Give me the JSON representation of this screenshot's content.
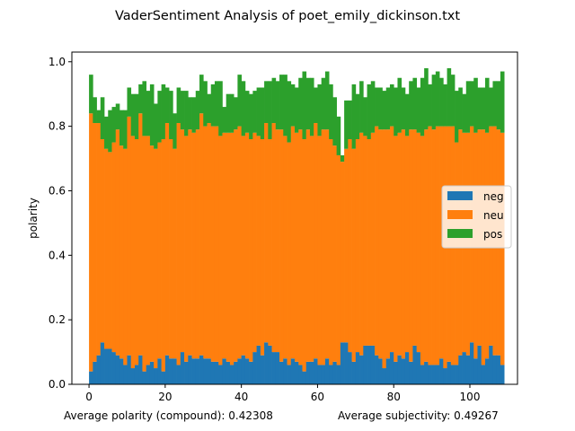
{
  "chart_data": {
    "type": "bar",
    "stacked": true,
    "title": "VaderSentiment Analysis of poet_emily_dickinson.txt",
    "xlabel": "",
    "ylabel": "polarity",
    "xlim": [
      -4.5,
      112.5
    ],
    "ylim": [
      0,
      1.03
    ],
    "xticks": [
      0,
      20,
      40,
      60,
      80,
      100
    ],
    "yticks": [
      0.0,
      0.2,
      0.4,
      0.6,
      0.8,
      1.0
    ],
    "grid": false,
    "legend_position": "right",
    "footer_left": "Average polarity (compound): 0.42308",
    "footer_right": "Average subjectivity: 0.49267",
    "series": [
      {
        "name": "neg",
        "color": "#1f77b4",
        "values": [
          0.04,
          0.07,
          0.09,
          0.13,
          0.11,
          0.11,
          0.1,
          0.09,
          0.08,
          0.06,
          0.09,
          0.05,
          0.06,
          0.09,
          0.04,
          0.06,
          0.07,
          0.05,
          0.08,
          0.04,
          0.09,
          0.08,
          0.08,
          0.06,
          0.1,
          0.07,
          0.09,
          0.08,
          0.08,
          0.09,
          0.08,
          0.08,
          0.07,
          0.07,
          0.06,
          0.08,
          0.07,
          0.06,
          0.07,
          0.08,
          0.09,
          0.08,
          0.07,
          0.1,
          0.12,
          0.09,
          0.13,
          0.12,
          0.1,
          0.1,
          0.07,
          0.08,
          0.06,
          0.08,
          0.07,
          0.06,
          0.04,
          0.07,
          0.07,
          0.08,
          0.06,
          0.06,
          0.08,
          0.06,
          0.07,
          0.06,
          0.13,
          0.13,
          0.1,
          0.07,
          0.1,
          0.09,
          0.12,
          0.12,
          0.12,
          0.09,
          0.08,
          0.05,
          0.08,
          0.1,
          0.07,
          0.09,
          0.08,
          0.1,
          0.07,
          0.12,
          0.1,
          0.06,
          0.07,
          0.06,
          0.06,
          0.06,
          0.08,
          0.05,
          0.07,
          0.06,
          0.06,
          0.09,
          0.1,
          0.09,
          0.13,
          0.08,
          0.12,
          0.06,
          0.08,
          0.12,
          0.09,
          0.09,
          0.06
        ]
      },
      {
        "name": "neu",
        "values": [
          0.8,
          0.74,
          0.72,
          0.63,
          0.62,
          0.61,
          0.65,
          0.7,
          0.66,
          0.67,
          0.74,
          0.72,
          0.7,
          0.75,
          0.73,
          0.71,
          0.67,
          0.68,
          0.67,
          0.72,
          0.72,
          0.68,
          0.65,
          0.75,
          0.69,
          0.7,
          0.7,
          0.7,
          0.71,
          0.75,
          0.72,
          0.73,
          0.73,
          0.73,
          0.71,
          0.7,
          0.71,
          0.72,
          0.72,
          0.72,
          0.68,
          0.7,
          0.69,
          0.68,
          0.65,
          0.67,
          0.68,
          0.64,
          0.71,
          0.69,
          0.72,
          0.69,
          0.69,
          0.72,
          0.71,
          0.73,
          0.72,
          0.72,
          0.7,
          0.73,
          0.71,
          0.73,
          0.71,
          0.7,
          0.67,
          0.65,
          0.56,
          0.6,
          0.66,
          0.66,
          0.66,
          0.69,
          0.65,
          0.64,
          0.66,
          0.71,
          0.71,
          0.74,
          0.71,
          0.7,
          0.7,
          0.69,
          0.71,
          0.67,
          0.72,
          0.67,
          0.68,
          0.71,
          0.72,
          0.74,
          0.73,
          0.74,
          0.72,
          0.75,
          0.73,
          0.74,
          0.69,
          0.7,
          0.68,
          0.69,
          0.67,
          0.7,
          0.67,
          0.73,
          0.7,
          0.68,
          0.71,
          0.7,
          0.72
        ],
        "color": "#ff7f0e"
      },
      {
        "name": "pos",
        "color": "#2ca02c",
        "values": [
          0.12,
          0.08,
          0.04,
          0.13,
          0.1,
          0.13,
          0.11,
          0.08,
          0.11,
          0.12,
          0.09,
          0.13,
          0.14,
          0.09,
          0.17,
          0.14,
          0.19,
          0.14,
          0.16,
          0.17,
          0.11,
          0.15,
          0.11,
          0.11,
          0.12,
          0.14,
          0.1,
          0.11,
          0.12,
          0.12,
          0.14,
          0.09,
          0.13,
          0.14,
          0.17,
          0.08,
          0.12,
          0.12,
          0.1,
          0.16,
          0.17,
          0.13,
          0.14,
          0.13,
          0.15,
          0.16,
          0.13,
          0.18,
          0.14,
          0.15,
          0.17,
          0.19,
          0.19,
          0.13,
          0.14,
          0.16,
          0.21,
          0.16,
          0.18,
          0.11,
          0.16,
          0.16,
          0.18,
          0.17,
          0.15,
          0.12,
          0.02,
          0.15,
          0.12,
          0.2,
          0.14,
          0.16,
          0.12,
          0.17,
          0.16,
          0.12,
          0.13,
          0.12,
          0.13,
          0.13,
          0.15,
          0.17,
          0.13,
          0.13,
          0.15,
          0.16,
          0.14,
          0.18,
          0.19,
          0.13,
          0.17,
          0.17,
          0.15,
          0.13,
          0.18,
          0.16,
          0.16,
          0.13,
          0.12,
          0.16,
          0.14,
          0.17,
          0.13,
          0.13,
          0.17,
          0.12,
          0.14,
          0.15,
          0.19
        ]
      }
    ]
  }
}
